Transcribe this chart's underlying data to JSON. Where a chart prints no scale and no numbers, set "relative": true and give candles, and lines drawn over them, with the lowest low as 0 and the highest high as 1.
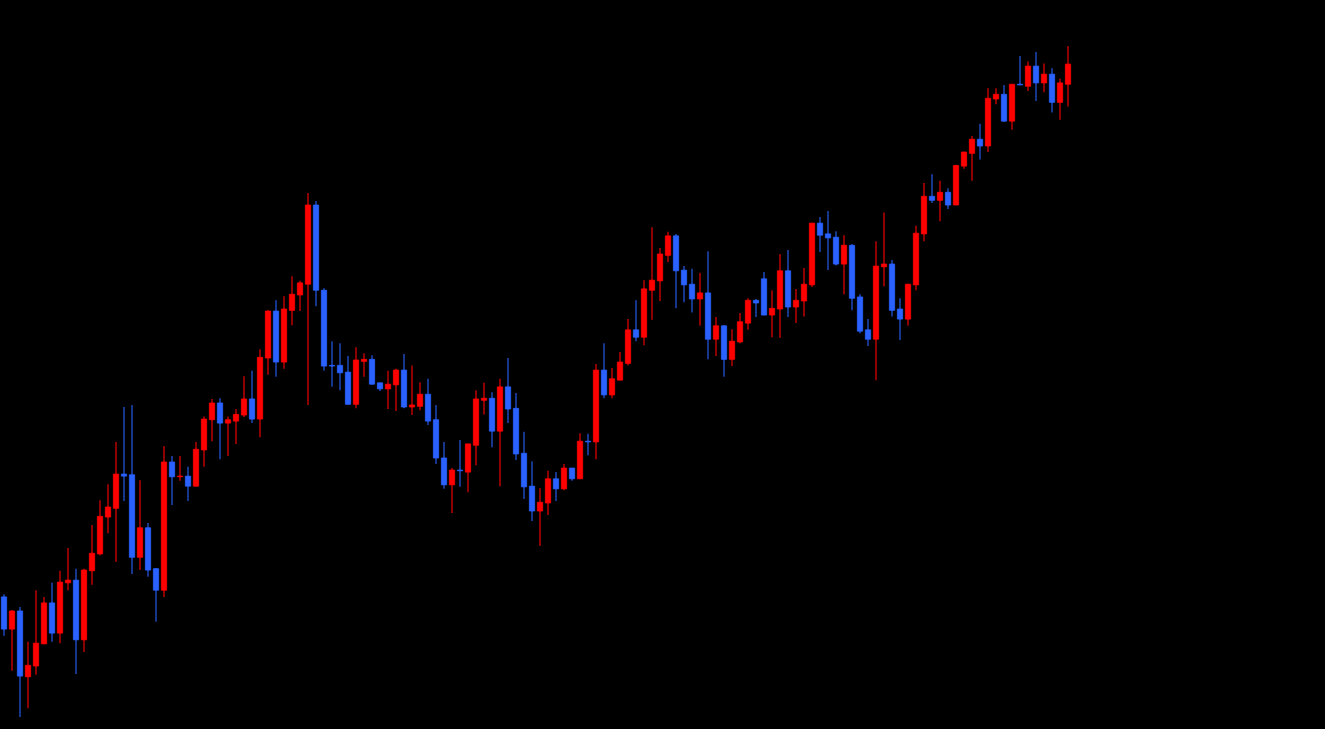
{
  "chart_data": {
    "type": "candlestick",
    "relative": true,
    "categories": [
      null,
      null,
      null,
      null,
      null,
      null,
      null,
      null,
      null,
      null,
      null,
      null,
      null,
      null,
      null,
      null,
      null,
      null,
      null,
      null,
      null,
      null,
      null,
      null,
      null,
      null,
      null,
      null,
      null,
      null,
      null,
      null,
      null,
      null,
      null,
      null,
      null,
      null,
      null,
      null,
      null,
      null,
      null,
      null,
      null,
      null,
      null,
      null,
      null,
      null,
      null,
      null,
      null,
      null,
      null,
      null,
      null,
      null,
      null,
      null,
      null,
      null,
      null,
      null,
      null,
      null,
      null,
      null,
      null,
      null,
      null,
      null,
      null,
      null,
      null,
      null,
      null,
      null,
      null,
      null,
      null,
      null,
      null,
      null,
      null,
      null,
      null,
      null,
      null,
      null,
      null,
      null,
      null,
      null,
      null,
      null,
      null,
      null,
      null,
      null,
      null,
      null,
      null,
      null,
      null,
      null,
      null,
      null,
      null,
      null,
      null,
      null,
      null,
      null,
      null,
      null,
      null,
      null,
      null,
      null,
      null,
      null,
      null,
      null,
      null,
      null,
      null,
      null,
      null,
      null,
      null,
      null,
      null,
      null
    ],
    "ohlc": [
      [
        0.179,
        0.183,
        0.121,
        0.131
      ],
      [
        0.131,
        0.159,
        0.069,
        0.158
      ],
      [
        0.158,
        0.164,
        0,
        0.061
      ],
      [
        0.06,
        0.112,
        0.013,
        0.077
      ],
      [
        0.076,
        0.189,
        0.063,
        0.11
      ],
      [
        0.109,
        0.179,
        0.109,
        0.17
      ],
      [
        0.17,
        0.2,
        0.112,
        0.125
      ],
      [
        0.125,
        0.218,
        0.11,
        0.201
      ],
      [
        0.2,
        0.252,
        0.189,
        0.204
      ],
      [
        0.204,
        0.221,
        0.064,
        0.115
      ],
      [
        0.115,
        0.221,
        0.097,
        0.219
      ],
      [
        0.218,
        0.286,
        0.197,
        0.244
      ],
      [
        0.243,
        0.323,
        0.241,
        0.299
      ],
      [
        0.298,
        0.347,
        0.274,
        0.313
      ],
      [
        0.311,
        0.41,
        0.231,
        0.362
      ],
      [
        0.362,
        0.462,
        0.322,
        0.359
      ],
      [
        0.361,
        0.465,
        0.213,
        0.238
      ],
      [
        0.238,
        0.353,
        0.219,
        0.282
      ],
      [
        0.282,
        0.289,
        0.209,
        0.219
      ],
      [
        0.221,
        0.222,
        0.142,
        0.189
      ],
      [
        0.189,
        0.404,
        0.179,
        0.38
      ],
      [
        0.38,
        0.389,
        0.316,
        0.358
      ],
      [
        0.358,
        0.389,
        0.352,
        0.359
      ],
      [
        0.359,
        0.373,
        0.322,
        0.344
      ],
      [
        0.344,
        0.41,
        0.344,
        0.399
      ],
      [
        0.398,
        0.448,
        0.373,
        0.444
      ],
      [
        0.443,
        0.474,
        0.411,
        0.468
      ],
      [
        0.468,
        0.475,
        0.384,
        0.438
      ],
      [
        0.438,
        0.448,
        0.389,
        0.443
      ],
      [
        0.441,
        0.459,
        0.407,
        0.451
      ],
      [
        0.45,
        0.508,
        0.447,
        0.474
      ],
      [
        0.474,
        0.516,
        0.438,
        0.444
      ],
      [
        0.444,
        0.548,
        0.417,
        0.536
      ],
      [
        0.535,
        0.606,
        0.51,
        0.605
      ],
      [
        0.605,
        0.621,
        0.507,
        0.529
      ],
      [
        0.529,
        0.627,
        0.519,
        0.608
      ],
      [
        0.606,
        0.657,
        0.584,
        0.63
      ],
      [
        0.629,
        0.65,
        0.605,
        0.647
      ],
      [
        0.645,
        0.781,
        0.465,
        0.763
      ],
      [
        0.763,
        0.769,
        0.612,
        0.636
      ],
      [
        0.636,
        0.639,
        0.516,
        0.523
      ],
      [
        0.524,
        0.56,
        0.492,
        0.523
      ],
      [
        0.524,
        0.557,
        0.487,
        0.513
      ],
      [
        0.514,
        0.538,
        0.466,
        0.466
      ],
      [
        0.466,
        0.551,
        0.46,
        0.532
      ],
      [
        0.53,
        0.542,
        0.507,
        0.533
      ],
      [
        0.533,
        0.539,
        0.495,
        0.496
      ],
      [
        0.498,
        0.498,
        0.486,
        0.489
      ],
      [
        0.489,
        0.516,
        0.459,
        0.496
      ],
      [
        0.495,
        0.519,
        0.456,
        0.517
      ],
      [
        0.517,
        0.541,
        0.46,
        0.462
      ],
      [
        0.462,
        0.524,
        0.45,
        0.465
      ],
      [
        0.463,
        0.499,
        0.457,
        0.481
      ],
      [
        0.481,
        0.504,
        0.435,
        0.441
      ],
      [
        0.443,
        0.465,
        0.377,
        0.386
      ],
      [
        0.386,
        0.41,
        0.34,
        0.346
      ],
      [
        0.346,
        0.371,
        0.304,
        0.368
      ],
      [
        0.368,
        0.413,
        0.343,
        0.367
      ],
      [
        0.365,
        0.407,
        0.335,
        0.407
      ],
      [
        0.405,
        0.487,
        0.375,
        0.474
      ],
      [
        0.472,
        0.498,
        0.451,
        0.475
      ],
      [
        0.475,
        0.484,
        0.402,
        0.426
      ],
      [
        0.426,
        0.504,
        0.344,
        0.492
      ],
      [
        0.492,
        0.535,
        0.438,
        0.459
      ],
      [
        0.46,
        0.483,
        0.383,
        0.392
      ],
      [
        0.393,
        0.425,
        0.325,
        0.343
      ],
      [
        0.344,
        0.381,
        0.292,
        0.307
      ],
      [
        0.307,
        0.341,
        0.255,
        0.32
      ],
      [
        0.319,
        0.367,
        0.301,
        0.355
      ],
      [
        0.355,
        0.365,
        0.322,
        0.34
      ],
      [
        0.34,
        0.377,
        0.338,
        0.371
      ],
      [
        0.371,
        0.371,
        0.352,
        0.355
      ],
      [
        0.355,
        0.423,
        0.355,
        0.411
      ],
      [
        0.411,
        0.422,
        0.39,
        0.41
      ],
      [
        0.41,
        0.526,
        0.384,
        0.517
      ],
      [
        0.517,
        0.557,
        0.475,
        0.48
      ],
      [
        0.48,
        0.52,
        0.475,
        0.504
      ],
      [
        0.502,
        0.544,
        0.502,
        0.529
      ],
      [
        0.527,
        0.593,
        0.524,
        0.577
      ],
      [
        0.577,
        0.621,
        0.56,
        0.566
      ],
      [
        0.566,
        0.651,
        0.554,
        0.638
      ],
      [
        0.636,
        0.73,
        0.592,
        0.651
      ],
      [
        0.65,
        0.699,
        0.62,
        0.69
      ],
      [
        0.688,
        0.723,
        0.678,
        0.717
      ],
      [
        0.717,
        0.72,
        0.609,
        0.665
      ],
      [
        0.666,
        0.672,
        0.618,
        0.644
      ],
      [
        0.645,
        0.668,
        0.603,
        0.623
      ],
      [
        0.623,
        0.662,
        0.583,
        0.632
      ],
      [
        0.632,
        0.694,
        0.533,
        0.563
      ],
      [
        0.563,
        0.596,
        0.538,
        0.583
      ],
      [
        0.583,
        0.584,
        0.507,
        0.533
      ],
      [
        0.533,
        0.578,
        0.523,
        0.56
      ],
      [
        0.559,
        0.602,
        0.557,
        0.589
      ],
      [
        0.587,
        0.624,
        0.577,
        0.621
      ],
      [
        0.621,
        0.623,
        0.596,
        0.617
      ],
      [
        0.653,
        0.663,
        0.599,
        0.599
      ],
      [
        0.599,
        0.636,
        0.566,
        0.609
      ],
      [
        0.608,
        0.69,
        0.565,
        0.665
      ],
      [
        0.665,
        0.696,
        0.596,
        0.611
      ],
      [
        0.611,
        0.638,
        0.587,
        0.621
      ],
      [
        0.62,
        0.669,
        0.597,
        0.645
      ],
      [
        0.644,
        0.736,
        0.641,
        0.736
      ],
      [
        0.736,
        0.745,
        0.693,
        0.718
      ],
      [
        0.72,
        0.754,
        0.666,
        0.714
      ],
      [
        0.715,
        0.724,
        0.673,
        0.675
      ],
      [
        0.675,
        0.718,
        0.63,
        0.703
      ],
      [
        0.703,
        0.705,
        0.606,
        0.624
      ],
      [
        0.626,
        0.63,
        0.572,
        0.575
      ],
      [
        0.577,
        0.593,
        0.553,
        0.563
      ],
      [
        0.563,
        0.709,
        0.502,
        0.672
      ],
      [
        0.671,
        0.752,
        0.642,
        0.675
      ],
      [
        0.675,
        0.681,
        0.597,
        0.606
      ],
      [
        0.608,
        0.624,
        0.562,
        0.593
      ],
      [
        0.593,
        0.645,
        0.583,
        0.645
      ],
      [
        0.644,
        0.732,
        0.636,
        0.721
      ],
      [
        0.72,
        0.796,
        0.709,
        0.776
      ],
      [
        0.776,
        0.809,
        0.766,
        0.77
      ],
      [
        0.77,
        0.799,
        0.739,
        0.782
      ],
      [
        0.782,
        0.788,
        0.757,
        0.763
      ],
      [
        0.763,
        0.822,
        0.763,
        0.822
      ],
      [
        0.821,
        0.842,
        0.817,
        0.842
      ],
      [
        0.84,
        0.866,
        0.799,
        0.861
      ],
      [
        0.861,
        0.884,
        0.831,
        0.851
      ],
      [
        0.851,
        0.937,
        0.842,
        0.922
      ],
      [
        0.921,
        0.937,
        0.913,
        0.928
      ],
      [
        0.928,
        0.942,
        0.887,
        0.888
      ],
      [
        0.888,
        0.943,
        0.875,
        0.943
      ],
      [
        0.943,
        0.985,
        0.942,
        0.942
      ],
      [
        0.94,
        0.977,
        0.933,
        0.97
      ],
      [
        0.97,
        0.991,
        0.918,
        0.945
      ],
      [
        0.945,
        0.974,
        0.931,
        0.958
      ],
      [
        0.958,
        0.967,
        0.901,
        0.916
      ],
      [
        0.916,
        0.951,
        0.89,
        0.945
      ],
      [
        0.943,
        1,
        0.91,
        0.973
      ]
    ],
    "colors": [
      "#2962ff",
      "#ff0000",
      "#2962ff",
      "#ff0000",
      "#ff0000",
      "#ff0000",
      "#2962ff",
      "#ff0000",
      "#ff0000",
      "#2962ff",
      "#ff0000",
      "#ff0000",
      "#ff0000",
      "#ff0000",
      "#ff0000",
      "#2962ff",
      "#2962ff",
      "#ff0000",
      "#2962ff",
      "#2962ff",
      "#ff0000",
      "#2962ff",
      "#ff0000",
      "#2962ff",
      "#ff0000",
      "#ff0000",
      "#ff0000",
      "#2962ff",
      "#ff0000",
      "#ff0000",
      "#ff0000",
      "#2962ff",
      "#ff0000",
      "#ff0000",
      "#2962ff",
      "#ff0000",
      "#ff0000",
      "#ff0000",
      "#ff0000",
      "#2962ff",
      "#2962ff",
      "#2962ff",
      "#2962ff",
      "#2962ff",
      "#ff0000",
      "#ff0000",
      "#2962ff",
      "#2962ff",
      "#ff0000",
      "#ff0000",
      "#2962ff",
      "#ff0000",
      "#ff0000",
      "#2962ff",
      "#2962ff",
      "#2962ff",
      "#ff0000",
      "#2962ff",
      "#ff0000",
      "#ff0000",
      "#ff0000",
      "#2962ff",
      "#ff0000",
      "#2962ff",
      "#2962ff",
      "#2962ff",
      "#2962ff",
      "#ff0000",
      "#ff0000",
      "#2962ff",
      "#ff0000",
      "#2962ff",
      "#ff0000",
      "#2962ff",
      "#ff0000",
      "#2962ff",
      "#ff0000",
      "#ff0000",
      "#ff0000",
      "#2962ff",
      "#ff0000",
      "#ff0000",
      "#ff0000",
      "#ff0000",
      "#2962ff",
      "#2962ff",
      "#2962ff",
      "#ff0000",
      "#2962ff",
      "#ff0000",
      "#2962ff",
      "#ff0000",
      "#ff0000",
      "#ff0000",
      "#2962ff",
      "#2962ff",
      "#ff0000",
      "#ff0000",
      "#2962ff",
      "#ff0000",
      "#ff0000",
      "#ff0000",
      "#2962ff",
      "#2962ff",
      "#2962ff",
      "#ff0000",
      "#2962ff",
      "#2962ff",
      "#2962ff",
      "#ff0000",
      "#ff0000",
      "#2962ff",
      "#2962ff",
      "#ff0000",
      "#ff0000",
      "#ff0000",
      "#2962ff",
      "#ff0000",
      "#2962ff",
      "#ff0000",
      "#ff0000",
      "#ff0000",
      "#2962ff",
      "#ff0000",
      "#ff0000",
      "#2962ff",
      "#ff0000",
      "#2962ff",
      "#ff0000",
      "#2962ff",
      "#ff0000",
      "#2962ff",
      "#ff0000",
      "#ff0000"
    ]
  }
}
